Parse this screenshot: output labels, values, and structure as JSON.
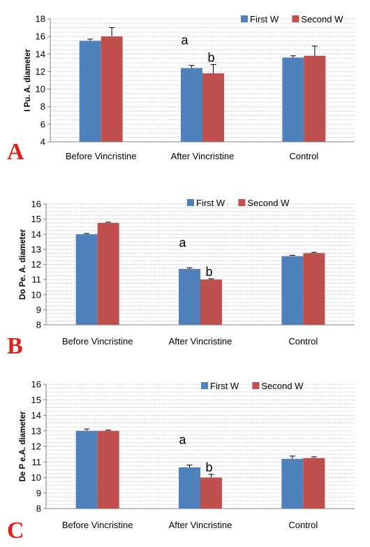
{
  "colors": {
    "first": "#4f81bd",
    "second": "#c0504d",
    "grid": "#b9b9b9",
    "axis": "#808080",
    "panel_letter": "#e0201a"
  },
  "chart_data": [
    {
      "type": "bar",
      "panel_letter": "A",
      "ylabel": "I Pu. A. diameter",
      "categories": [
        "Before Vincristine",
        "After Vincristine",
        "Control"
      ],
      "ylim": [
        4,
        18
      ],
      "yticks": [
        4,
        6,
        8,
        10,
        12,
        14,
        16,
        18
      ],
      "grid": "horizontal minor lines",
      "legend_placement": "top-right",
      "series": [
        {
          "name": "First W",
          "values": [
            15.5,
            12.4,
            13.6
          ],
          "errors": [
            0.2,
            0.3,
            0.2
          ]
        },
        {
          "name": "Second W",
          "values": [
            16.0,
            11.8,
            13.8
          ],
          "errors": [
            1.0,
            1.0,
            1.1
          ]
        }
      ],
      "annotations": [
        {
          "text": "a",
          "category": "After Vincristine",
          "series": "First W"
        },
        {
          "text": "b",
          "category": "After Vincristine",
          "series": "Second W"
        }
      ]
    },
    {
      "type": "bar",
      "panel_letter": "B",
      "ylabel": "Do Pe. A. diameter",
      "categories": [
        "Before Vincristine",
        "After Vincristine",
        "Control"
      ],
      "ylim": [
        8,
        16
      ],
      "yticks": [
        8,
        9,
        10,
        11,
        12,
        13,
        14,
        15,
        16
      ],
      "grid": "horizontal minor lines",
      "legend_placement": "top-center",
      "series": [
        {
          "name": "First W",
          "values": [
            14.0,
            11.7,
            12.55
          ],
          "errors": [
            0.05,
            0.08,
            0.05
          ]
        },
        {
          "name": "Second W",
          "values": [
            14.75,
            11.0,
            12.75
          ],
          "errors": [
            0.05,
            0.05,
            0.05
          ]
        }
      ],
      "annotations": [
        {
          "text": "a",
          "category": "After Vincristine",
          "series": "First W"
        },
        {
          "text": "b",
          "category": "After Vincristine",
          "series": "Second W"
        }
      ]
    },
    {
      "type": "bar",
      "panel_letter": "C",
      "ylabel": "De P e.A. diameter",
      "categories": [
        "Before Vincristine",
        "After Vincristine",
        "Control"
      ],
      "ylim": [
        8,
        16
      ],
      "yticks": [
        8,
        9,
        10,
        11,
        12,
        13,
        14,
        15,
        16
      ],
      "grid": "horizontal minor lines",
      "legend_placement": "top-center",
      "series": [
        {
          "name": "First W",
          "values": [
            13.0,
            10.65,
            11.2
          ],
          "errors": [
            0.12,
            0.15,
            0.18
          ]
        },
        {
          "name": "Second W",
          "values": [
            13.0,
            10.0,
            11.25
          ],
          "errors": [
            0.05,
            0.2,
            0.08
          ]
        }
      ],
      "annotations": [
        {
          "text": "a",
          "category": "After Vincristine",
          "series": "First W"
        },
        {
          "text": "b",
          "category": "After Vincristine",
          "series": "Second W"
        }
      ]
    }
  ]
}
